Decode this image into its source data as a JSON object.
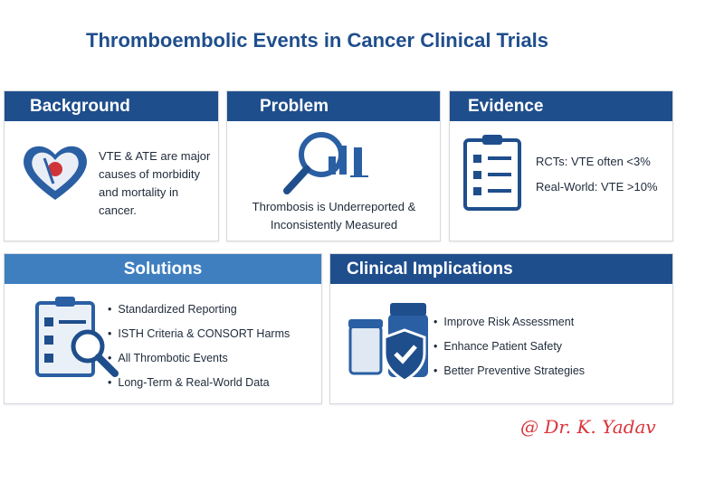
{
  "header": {
    "title": "Thromboembolic Events in Cancer Clinical Trials"
  },
  "panels": {
    "background": {
      "title": "Background",
      "text": "VTE & ATE are major causes of morbidity and mortality in cancer."
    },
    "problem": {
      "title": "Problem",
      "text": "Thrombosis is Underreported & Inconsistently Measured"
    },
    "evidence": {
      "title": "Evidence",
      "items": [
        "RCTs: VTE often <3%",
        "Real-World: VTE >10%"
      ]
    },
    "solutions": {
      "title": "Solutions",
      "items": [
        "Standardized Reporting",
        "ISTH Criteria & CONSORT Harms",
        "All Thrombotic Events",
        "Long-Term & Real-World Data"
      ]
    },
    "implications": {
      "title": "Clinical Implications",
      "items": [
        "Improve Risk Assessment",
        "Enhance Patient Safety",
        "Better Preventive Strategies"
      ]
    }
  },
  "signature": "@ Dr. K. Yadav"
}
